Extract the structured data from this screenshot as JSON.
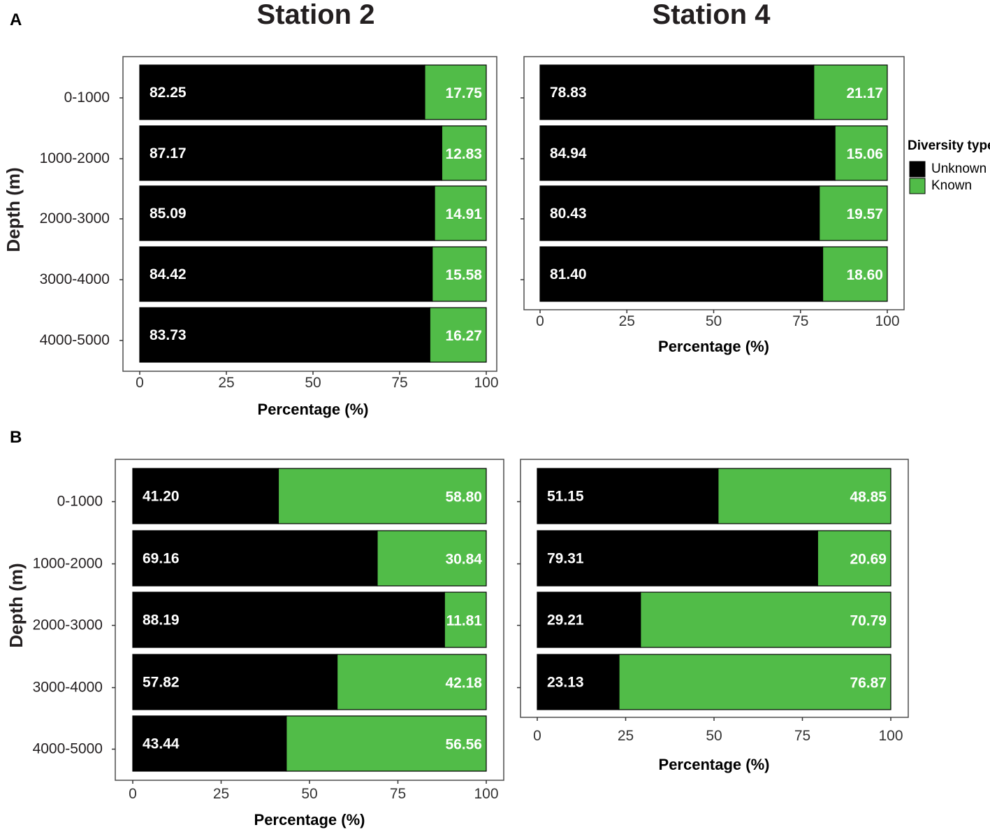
{
  "figure": {
    "station_titles": [
      "Station 2",
      "Station 4"
    ],
    "panel_letters": [
      "A",
      "B"
    ],
    "legend": {
      "title": "Diversity type",
      "items": [
        {
          "label": "Unknown",
          "color": "#000000"
        },
        {
          "label": "Known",
          "color": "#51bc48"
        }
      ]
    }
  },
  "chart_data": [
    {
      "type": "bar",
      "orientation": "horizontal",
      "stacked": true,
      "panel": "A",
      "station": "Station 2",
      "categories": [
        "0-1000",
        "1000-2000",
        "2000-3000",
        "3000-4000",
        "4000-5000"
      ],
      "series": [
        {
          "name": "Unknown",
          "color": "#000000",
          "values": [
            82.25,
            87.17,
            85.09,
            84.42,
            83.73
          ],
          "labels": [
            "82.25",
            "87.17",
            "85.09",
            "84.42",
            "83.73"
          ]
        },
        {
          "name": "Known",
          "color": "#51bc48",
          "values": [
            17.75,
            12.83,
            14.91,
            15.58,
            16.27
          ],
          "labels": [
            "17.75",
            "12.83",
            "14.91",
            "15.58",
            "16.27"
          ]
        }
      ],
      "xlabel": "Percentage (%)",
      "ylabel": "Depth (m)",
      "xlim": [
        0,
        100
      ],
      "xticks": [
        "0",
        "25",
        "50",
        "75",
        "100"
      ],
      "show_category_labels": true
    },
    {
      "type": "bar",
      "orientation": "horizontal",
      "stacked": true,
      "panel": "A",
      "station": "Station 4",
      "categories": [
        "0-1000",
        "1000-2000",
        "2000-3000",
        "3000-4000"
      ],
      "series": [
        {
          "name": "Unknown",
          "color": "#000000",
          "values": [
            78.83,
            84.94,
            80.43,
            81.4
          ],
          "labels": [
            "78.83",
            "84.94",
            "80.43",
            "81.40"
          ]
        },
        {
          "name": "Known",
          "color": "#51bc48",
          "values": [
            21.17,
            15.06,
            19.57,
            18.6
          ],
          "labels": [
            "21.17",
            "15.06",
            "19.57",
            "18.60"
          ]
        }
      ],
      "xlabel": "Percentage (%)",
      "ylabel": "",
      "xlim": [
        0,
        100
      ],
      "xticks": [
        "0",
        "25",
        "50",
        "75",
        "100"
      ],
      "show_category_labels": false
    },
    {
      "type": "bar",
      "orientation": "horizontal",
      "stacked": true,
      "panel": "B",
      "station": "Station 2",
      "categories": [
        "0-1000",
        "1000-2000",
        "2000-3000",
        "3000-4000",
        "4000-5000"
      ],
      "series": [
        {
          "name": "Unknown",
          "color": "#000000",
          "values": [
            41.2,
            69.16,
            88.19,
            57.82,
            43.44
          ],
          "labels": [
            "41.20",
            "69.16",
            "88.19",
            "57.82",
            "43.44"
          ]
        },
        {
          "name": "Known",
          "color": "#51bc48",
          "values": [
            58.8,
            30.84,
            11.81,
            42.18,
            56.56
          ],
          "labels": [
            "58.80",
            "30.84",
            "11.81",
            "42.18",
            "56.56"
          ]
        }
      ],
      "xlabel": "Percentage (%)",
      "ylabel": "Depth (m)",
      "xlim": [
        0,
        100
      ],
      "xticks": [
        "0",
        "25",
        "50",
        "75",
        "100"
      ],
      "show_category_labels": true
    },
    {
      "type": "bar",
      "orientation": "horizontal",
      "stacked": true,
      "panel": "B",
      "station": "Station 4",
      "categories": [
        "0-1000",
        "1000-2000",
        "2000-3000",
        "3000-4000"
      ],
      "series": [
        {
          "name": "Unknown",
          "color": "#000000",
          "values": [
            51.15,
            79.31,
            29.21,
            23.13
          ],
          "labels": [
            "51.15",
            "79.31",
            "29.21",
            "23.13"
          ]
        },
        {
          "name": "Known",
          "color": "#51bc48",
          "values": [
            48.85,
            20.69,
            70.79,
            76.87
          ],
          "labels": [
            "48.85",
            "20.69",
            "70.79",
            "76.87"
          ]
        }
      ],
      "xlabel": "Percentage (%)",
      "ylabel": "",
      "xlim": [
        0,
        100
      ],
      "xticks": [
        "0",
        "25",
        "50",
        "75",
        "100"
      ],
      "show_category_labels": false
    }
  ]
}
